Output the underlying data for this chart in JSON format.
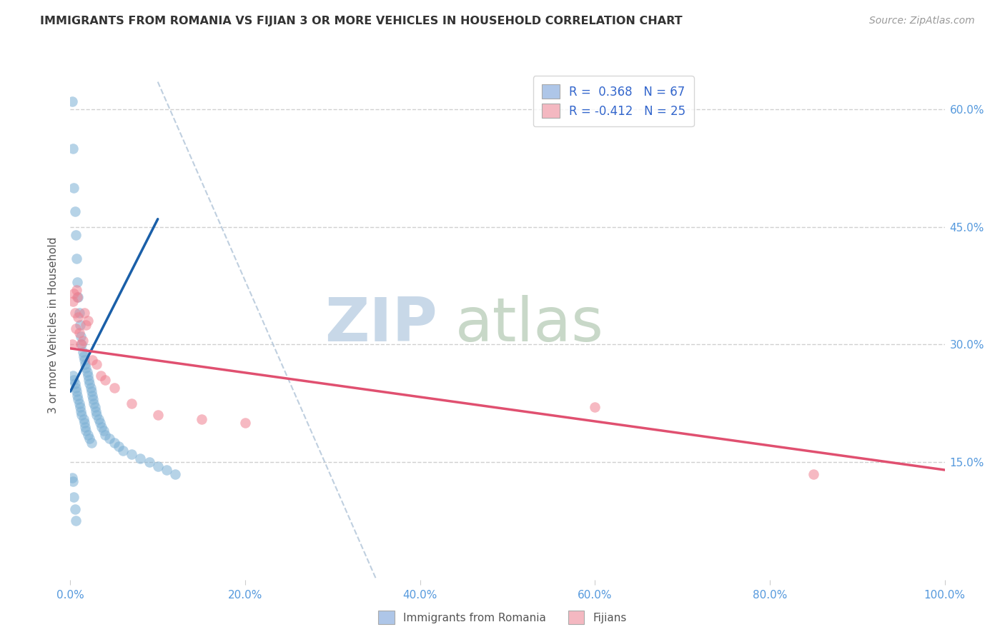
{
  "title": "IMMIGRANTS FROM ROMANIA VS FIJIAN 3 OR MORE VEHICLES IN HOUSEHOLD CORRELATION CHART",
  "source": "Source: ZipAtlas.com",
  "xlabel": "",
  "ylabel": "3 or more Vehicles in Household",
  "xlim": [
    0.0,
    100.0
  ],
  "ylim": [
    0.0,
    65.0
  ],
  "yticks_right": [
    15.0,
    30.0,
    45.0,
    60.0
  ],
  "xticks": [
    0.0,
    20.0,
    40.0,
    60.0,
    80.0,
    100.0
  ],
  "legend_entries": [
    {
      "label": "R =  0.368   N = 67",
      "color": "#aec6e8"
    },
    {
      "label": "R = -0.412   N = 25",
      "color": "#f4b8c1"
    }
  ],
  "bottom_legend": [
    {
      "label": "Immigrants from Romania",
      "color": "#aec6e8"
    },
    {
      "label": "Fijians",
      "color": "#f4b8c1"
    }
  ],
  "romania_scatter_x": [
    0.2,
    0.3,
    0.4,
    0.5,
    0.6,
    0.7,
    0.8,
    0.9,
    1.0,
    1.1,
    1.2,
    1.3,
    1.4,
    1.5,
    1.6,
    1.7,
    1.8,
    1.9,
    2.0,
    2.1,
    2.2,
    2.3,
    2.4,
    2.5,
    2.6,
    2.7,
    2.8,
    2.9,
    3.0,
    3.2,
    3.4,
    3.6,
    3.8,
    4.0,
    4.5,
    5.0,
    5.5,
    6.0,
    7.0,
    8.0,
    9.0,
    10.0,
    11.0,
    12.0,
    0.3,
    0.4,
    0.5,
    0.6,
    0.7,
    0.8,
    0.9,
    1.0,
    1.1,
    1.2,
    1.3,
    1.5,
    1.6,
    1.7,
    1.8,
    2.0,
    2.2,
    2.4,
    0.2,
    0.3,
    0.4,
    0.5,
    0.6
  ],
  "romania_scatter_y": [
    61.0,
    55.0,
    50.0,
    47.0,
    44.0,
    41.0,
    38.0,
    36.0,
    34.0,
    32.5,
    31.0,
    30.0,
    29.0,
    28.5,
    28.0,
    27.5,
    27.0,
    26.5,
    26.0,
    25.5,
    25.0,
    24.5,
    24.0,
    23.5,
    23.0,
    22.5,
    22.0,
    21.5,
    21.0,
    20.5,
    20.0,
    19.5,
    19.0,
    18.5,
    18.0,
    17.5,
    17.0,
    16.5,
    16.0,
    15.5,
    15.0,
    14.5,
    14.0,
    13.5,
    26.0,
    25.5,
    25.0,
    24.5,
    24.0,
    23.5,
    23.0,
    22.5,
    22.0,
    21.5,
    21.0,
    20.5,
    20.0,
    19.5,
    19.0,
    18.5,
    18.0,
    17.5,
    13.0,
    12.5,
    10.5,
    9.0,
    7.5
  ],
  "fijian_scatter_x": [
    0.2,
    0.3,
    0.4,
    0.5,
    0.6,
    0.7,
    0.8,
    0.9,
    1.0,
    1.2,
    1.4,
    1.6,
    1.8,
    2.0,
    2.5,
    3.0,
    3.5,
    4.0,
    5.0,
    7.0,
    10.0,
    15.0,
    20.0,
    60.0,
    85.0
  ],
  "fijian_scatter_y": [
    30.0,
    35.5,
    36.5,
    34.0,
    32.0,
    37.0,
    36.0,
    33.5,
    31.5,
    30.0,
    30.5,
    34.0,
    32.5,
    33.0,
    28.0,
    27.5,
    26.0,
    25.5,
    24.5,
    22.5,
    21.0,
    20.5,
    20.0,
    22.0,
    13.5
  ],
  "romania_line_x0": 0.0,
  "romania_line_y0": 24.0,
  "romania_line_x1": 10.0,
  "romania_line_y1": 46.0,
  "fijian_line_x0": 0.0,
  "fijian_line_y0": 29.5,
  "fijian_line_x1": 100.0,
  "fijian_line_y1": 14.0,
  "diagonal_x0": 10.0,
  "diagonal_y0": 63.5,
  "diagonal_x1": 35.0,
  "diagonal_y1": 0.0,
  "romania_color": "#7bafd4",
  "fijian_color": "#f08090",
  "romania_line_color": "#1a5fa8",
  "fijian_line_color": "#e05070",
  "diagonal_color": "#b0c4d8",
  "bg_color": "#ffffff",
  "grid_color": "#d0d0d0",
  "title_color": "#333333",
  "axis_label_color": "#555555",
  "right_tick_color": "#5599dd",
  "bottom_tick_color": "#5599dd"
}
